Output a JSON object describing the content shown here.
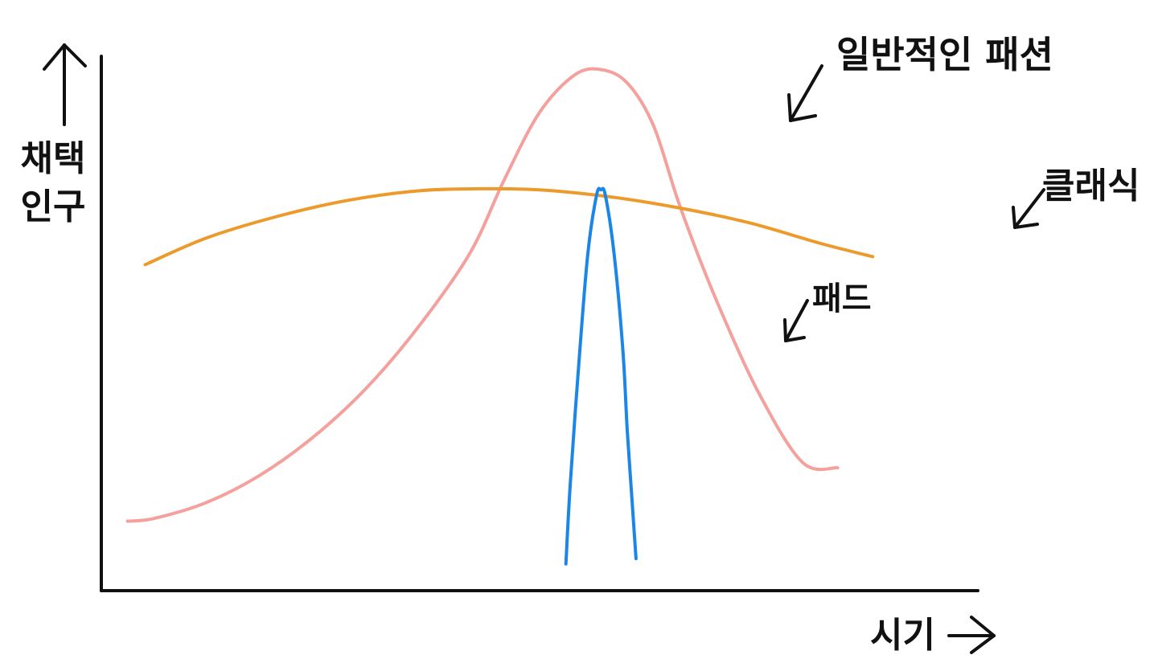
{
  "chart_data": {
    "type": "line",
    "title": "",
    "ylabel_lines": [
      "채택",
      "인구"
    ],
    "xlabel": "시기",
    "axis_arrows": true,
    "ticks": false,
    "grid": false,
    "series": [
      {
        "name": "일반적인 패션",
        "color": "#f4a09d",
        "points": [
          [
            0.03,
            0.13
          ],
          [
            0.06,
            0.135
          ],
          [
            0.12,
            0.165
          ],
          [
            0.18,
            0.215
          ],
          [
            0.24,
            0.285
          ],
          [
            0.3,
            0.375
          ],
          [
            0.36,
            0.49
          ],
          [
            0.42,
            0.63
          ],
          [
            0.46,
            0.77
          ],
          [
            0.5,
            0.895
          ],
          [
            0.54,
            0.965
          ],
          [
            0.57,
            0.975
          ],
          [
            0.6,
            0.95
          ],
          [
            0.63,
            0.87
          ],
          [
            0.66,
            0.72
          ],
          [
            0.7,
            0.55
          ],
          [
            0.75,
            0.37
          ],
          [
            0.8,
            0.24
          ],
          [
            0.84,
            0.23
          ]
        ]
      },
      {
        "name": "클래식",
        "color": "#ed9a2c",
        "points": [
          [
            0.05,
            0.61
          ],
          [
            0.12,
            0.66
          ],
          [
            0.2,
            0.7
          ],
          [
            0.28,
            0.73
          ],
          [
            0.36,
            0.748
          ],
          [
            0.43,
            0.752
          ],
          [
            0.5,
            0.75
          ],
          [
            0.58,
            0.737
          ],
          [
            0.66,
            0.716
          ],
          [
            0.74,
            0.688
          ],
          [
            0.82,
            0.65
          ],
          [
            0.88,
            0.625
          ]
        ]
      },
      {
        "name": "패드",
        "color": "#1b86e6",
        "points": [
          [
            0.53,
            0.05
          ],
          [
            0.535,
            0.2
          ],
          [
            0.545,
            0.43
          ],
          [
            0.555,
            0.63
          ],
          [
            0.565,
            0.74
          ],
          [
            0.57,
            0.75
          ],
          [
            0.575,
            0.74
          ],
          [
            0.585,
            0.63
          ],
          [
            0.595,
            0.45
          ],
          [
            0.6,
            0.3
          ],
          [
            0.605,
            0.18
          ],
          [
            0.61,
            0.06
          ]
        ]
      }
    ],
    "annotations": [
      {
        "text": "일반적인 패션",
        "series": "일반적인 패션"
      },
      {
        "text": "클래식",
        "series": "클래식"
      },
      {
        "text": "패드",
        "series": "패드"
      }
    ],
    "x_range": [
      0,
      1
    ],
    "y_range": [
      0,
      1
    ]
  }
}
